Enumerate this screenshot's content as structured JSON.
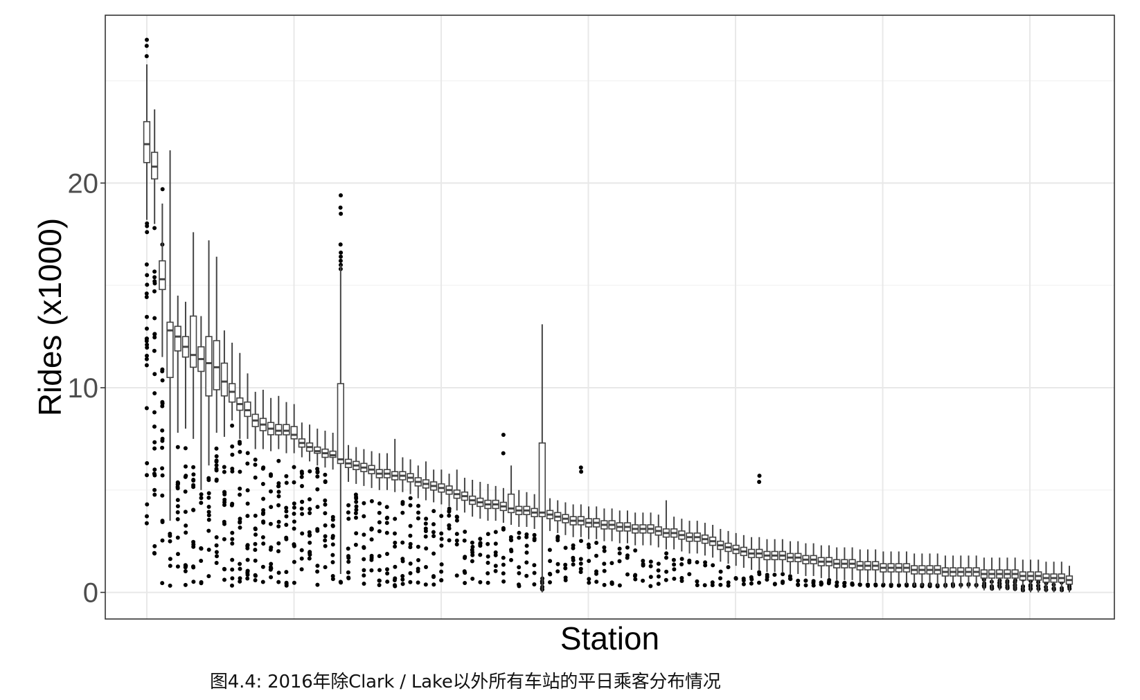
{
  "caption": "图4.4: 2016年除Clark / Lake以外所有车站的平日乘客分布情况",
  "colors": {
    "panel_border": "#333333",
    "grid_major": "#e8e8e8",
    "grid_minor": "#f4f4f4",
    "box": "#444444",
    "point": "#000000",
    "tick_text": "#4d4d4d",
    "axis_title": "#000000"
  },
  "chart_data": {
    "type": "boxplot",
    "title": "",
    "xlabel": "Station",
    "ylabel": "Rides (x1000)",
    "ylim": [
      -1.3,
      28.2
    ],
    "yticks": [
      0,
      10,
      20
    ],
    "ytick_labels": [
      "0",
      "10",
      "20"
    ],
    "x_tick_labels": [],
    "grid": true,
    "legend": "none",
    "n_stations": 120,
    "series": [
      {
        "stat": "median",
        "values": [
          21.9,
          20.8,
          15.3,
          12.8,
          12.5,
          12.0,
          11.6,
          11.4,
          11.2,
          11.0,
          10.3,
          9.8,
          9.2,
          8.9,
          8.4,
          8.2,
          8.0,
          7.9,
          7.9,
          7.7,
          7.3,
          7.1,
          6.9,
          6.8,
          6.7,
          6.5,
          6.3,
          6.2,
          6.1,
          6.0,
          5.8,
          5.8,
          5.7,
          5.7,
          5.6,
          5.4,
          5.3,
          5.2,
          5.1,
          5.0,
          4.8,
          4.7,
          4.5,
          4.4,
          4.3,
          4.3,
          4.2,
          4.1,
          4.0,
          4.0,
          3.9,
          3.9,
          3.8,
          3.7,
          3.6,
          3.5,
          3.5,
          3.4,
          3.4,
          3.3,
          3.3,
          3.2,
          3.2,
          3.1,
          3.1,
          3.1,
          3.0,
          2.9,
          2.9,
          2.8,
          2.7,
          2.7,
          2.6,
          2.5,
          2.3,
          2.2,
          2.1,
          2.0,
          1.9,
          1.9,
          1.8,
          1.8,
          1.8,
          1.7,
          1.7,
          1.6,
          1.6,
          1.5,
          1.5,
          1.4,
          1.4,
          1.4,
          1.3,
          1.3,
          1.3,
          1.2,
          1.2,
          1.2,
          1.2,
          1.1,
          1.1,
          1.1,
          1.1,
          1.0,
          1.0,
          1.0,
          1.0,
          1.0,
          0.9,
          0.9,
          0.9,
          0.9,
          0.9,
          0.8,
          0.8,
          0.8,
          0.7,
          0.7,
          0.7,
          0.6
        ]
      },
      {
        "stat": "q1",
        "values": [
          21.0,
          20.2,
          14.8,
          10.5,
          11.8,
          11.5,
          11.0,
          10.8,
          9.6,
          9.9,
          9.6,
          9.3,
          8.9,
          8.6,
          8.1,
          7.9,
          7.7,
          7.7,
          7.7,
          7.5,
          7.1,
          6.9,
          6.8,
          6.6,
          6.6,
          6.3,
          6.1,
          6.0,
          5.9,
          5.8,
          5.6,
          5.6,
          5.5,
          5.5,
          5.4,
          5.2,
          5.1,
          5.0,
          4.9,
          4.8,
          4.6,
          4.5,
          4.3,
          4.2,
          4.1,
          4.1,
          4.0,
          3.9,
          3.8,
          3.8,
          3.7,
          3.7,
          3.6,
          3.5,
          3.4,
          3.3,
          3.3,
          3.2,
          3.2,
          3.1,
          3.1,
          3.0,
          3.0,
          2.9,
          2.9,
          2.9,
          2.8,
          2.7,
          2.7,
          2.6,
          2.5,
          2.5,
          2.4,
          2.3,
          2.1,
          2.0,
          1.9,
          1.8,
          1.7,
          1.7,
          1.6,
          1.6,
          1.6,
          1.5,
          1.5,
          1.4,
          1.4,
          1.3,
          1.3,
          1.2,
          1.2,
          1.2,
          1.1,
          1.1,
          1.1,
          1.0,
          1.0,
          1.0,
          1.0,
          0.9,
          0.9,
          0.9,
          0.9,
          0.8,
          0.8,
          0.8,
          0.8,
          0.8,
          0.7,
          0.7,
          0.7,
          0.7,
          0.7,
          0.6,
          0.6,
          0.6,
          0.5,
          0.5,
          0.5,
          0.4
        ]
      },
      {
        "stat": "q3",
        "values": [
          23.0,
          21.5,
          16.2,
          13.2,
          13.0,
          12.5,
          13.5,
          12.0,
          12.5,
          12.3,
          11.2,
          10.2,
          9.5,
          9.3,
          8.7,
          8.5,
          8.3,
          8.2,
          8.2,
          8.1,
          7.5,
          7.3,
          7.1,
          7.0,
          6.9,
          10.2,
          6.5,
          6.4,
          6.3,
          6.2,
          6.0,
          6.0,
          5.9,
          5.9,
          5.8,
          5.6,
          5.5,
          5.4,
          5.3,
          5.2,
          5.0,
          4.9,
          4.7,
          4.6,
          4.5,
          4.5,
          4.4,
          4.8,
          4.2,
          4.2,
          4.1,
          7.3,
          4.0,
          3.9,
          3.8,
          3.7,
          3.7,
          3.6,
          3.6,
          3.5,
          3.5,
          3.4,
          3.4,
          3.3,
          3.3,
          3.3,
          3.2,
          3.1,
          3.1,
          3.0,
          2.9,
          2.9,
          2.8,
          2.7,
          2.5,
          2.4,
          2.3,
          2.2,
          2.1,
          2.1,
          2.0,
          2.0,
          2.0,
          1.9,
          1.9,
          1.8,
          1.8,
          1.7,
          1.7,
          1.6,
          1.6,
          1.6,
          1.5,
          1.5,
          1.5,
          1.4,
          1.4,
          1.4,
          1.4,
          1.3,
          1.3,
          1.3,
          1.3,
          1.2,
          1.2,
          1.2,
          1.2,
          1.2,
          1.1,
          1.1,
          1.1,
          1.1,
          1.1,
          1.0,
          1.0,
          1.0,
          0.9,
          0.9,
          0.9,
          0.8
        ]
      },
      {
        "stat": "whisker_low",
        "values": [
          18.2,
          18.0,
          11.5,
          3.5,
          7.8,
          8.0,
          7.5,
          5.0,
          6.2,
          7.8,
          7.6,
          8.4,
          7.5,
          7.5,
          7.0,
          7.0,
          6.9,
          7.0,
          6.8,
          6.8,
          6.6,
          6.4,
          6.2,
          6.1,
          6.0,
          0.9,
          5.4,
          5.3,
          5.2,
          5.1,
          5.0,
          5.0,
          4.9,
          4.9,
          4.8,
          4.6,
          4.5,
          4.4,
          4.3,
          4.2,
          4.0,
          3.9,
          3.7,
          3.6,
          3.5,
          3.5,
          3.4,
          3.3,
          3.2,
          3.2,
          3.1,
          0.0,
          3.0,
          2.9,
          2.8,
          2.7,
          2.7,
          2.6,
          2.6,
          2.5,
          2.5,
          2.4,
          2.4,
          2.3,
          2.3,
          2.3,
          2.2,
          2.1,
          2.1,
          2.0,
          1.9,
          1.9,
          1.8,
          1.7,
          1.5,
          1.4,
          1.3,
          1.2,
          1.1,
          1.1,
          1.0,
          1.0,
          1.0,
          0.9,
          0.9,
          0.8,
          0.8,
          0.7,
          0.7,
          0.6,
          0.6,
          0.6,
          0.5,
          0.5,
          0.5,
          0.4,
          0.4,
          0.4,
          0.4,
          0.3,
          0.3,
          0.3,
          0.3,
          0.2,
          0.2,
          0.2,
          0.2,
          0.2,
          0.1,
          0.1,
          0.1,
          0.1,
          0.1,
          0.0,
          0.0,
          0.0,
          0.0,
          0.0,
          0.0,
          0.0
        ]
      },
      {
        "stat": "whisker_high",
        "values": [
          25.8,
          23.6,
          19.0,
          21.6,
          14.5,
          14.2,
          17.6,
          13.5,
          17.2,
          16.4,
          12.8,
          12.2,
          11.7,
          10.7,
          9.8,
          9.9,
          9.5,
          9.6,
          9.3,
          9.2,
          8.3,
          8.2,
          8.0,
          7.9,
          7.8,
          16.0,
          7.2,
          7.1,
          7.0,
          6.9,
          6.8,
          6.8,
          7.5,
          6.6,
          6.5,
          6.2,
          6.4,
          6.0,
          6.0,
          5.8,
          6.0,
          5.6,
          5.5,
          5.4,
          5.3,
          5.2,
          5.1,
          6.2,
          5.0,
          4.9,
          4.8,
          13.1,
          4.6,
          4.5,
          4.4,
          4.3,
          4.3,
          4.2,
          4.2,
          4.1,
          4.1,
          4.0,
          4.0,
          3.9,
          3.9,
          3.9,
          3.8,
          4.5,
          3.7,
          3.6,
          3.5,
          3.5,
          3.4,
          3.3,
          3.1,
          3.0,
          2.9,
          2.8,
          2.7,
          2.7,
          2.6,
          2.6,
          2.6,
          2.5,
          2.5,
          2.4,
          2.4,
          2.3,
          2.3,
          2.2,
          2.2,
          2.2,
          2.1,
          2.1,
          2.1,
          2.0,
          2.0,
          2.0,
          2.0,
          1.9,
          1.9,
          1.9,
          1.9,
          1.8,
          1.8,
          1.8,
          1.8,
          1.8,
          1.7,
          1.7,
          1.7,
          1.7,
          1.7,
          1.6,
          1.6,
          1.6,
          1.5,
          1.5,
          1.5,
          1.3
        ]
      }
    ],
    "notable_outliers": [
      {
        "station": 1,
        "values": [
          27.0,
          26.7,
          26.2,
          17.9,
          17.6,
          15.5,
          14.6,
          12.4,
          12.1,
          11.4,
          11.1,
          9.0,
          4.3
        ]
      },
      {
        "station": 2,
        "values": [
          17.8,
          15.4,
          15.1,
          13.4,
          11.8,
          8.8,
          8.1,
          6.0,
          5.8,
          5.0,
          1.9
        ]
      },
      {
        "station": 3,
        "values": [
          19.7,
          17.0,
          10.8,
          9.3,
          3.5
        ]
      },
      {
        "station": 26,
        "values": [
          19.4,
          18.8,
          18.5,
          17.0,
          16.6,
          16.4,
          16.2,
          16.0,
          15.8
        ]
      },
      {
        "station": 47,
        "values": [
          7.7,
          6.8
        ]
      },
      {
        "station": 57,
        "values": [
          6.1,
          5.9
        ]
      },
      {
        "station": 80,
        "values": [
          5.7,
          5.4
        ]
      }
    ]
  }
}
